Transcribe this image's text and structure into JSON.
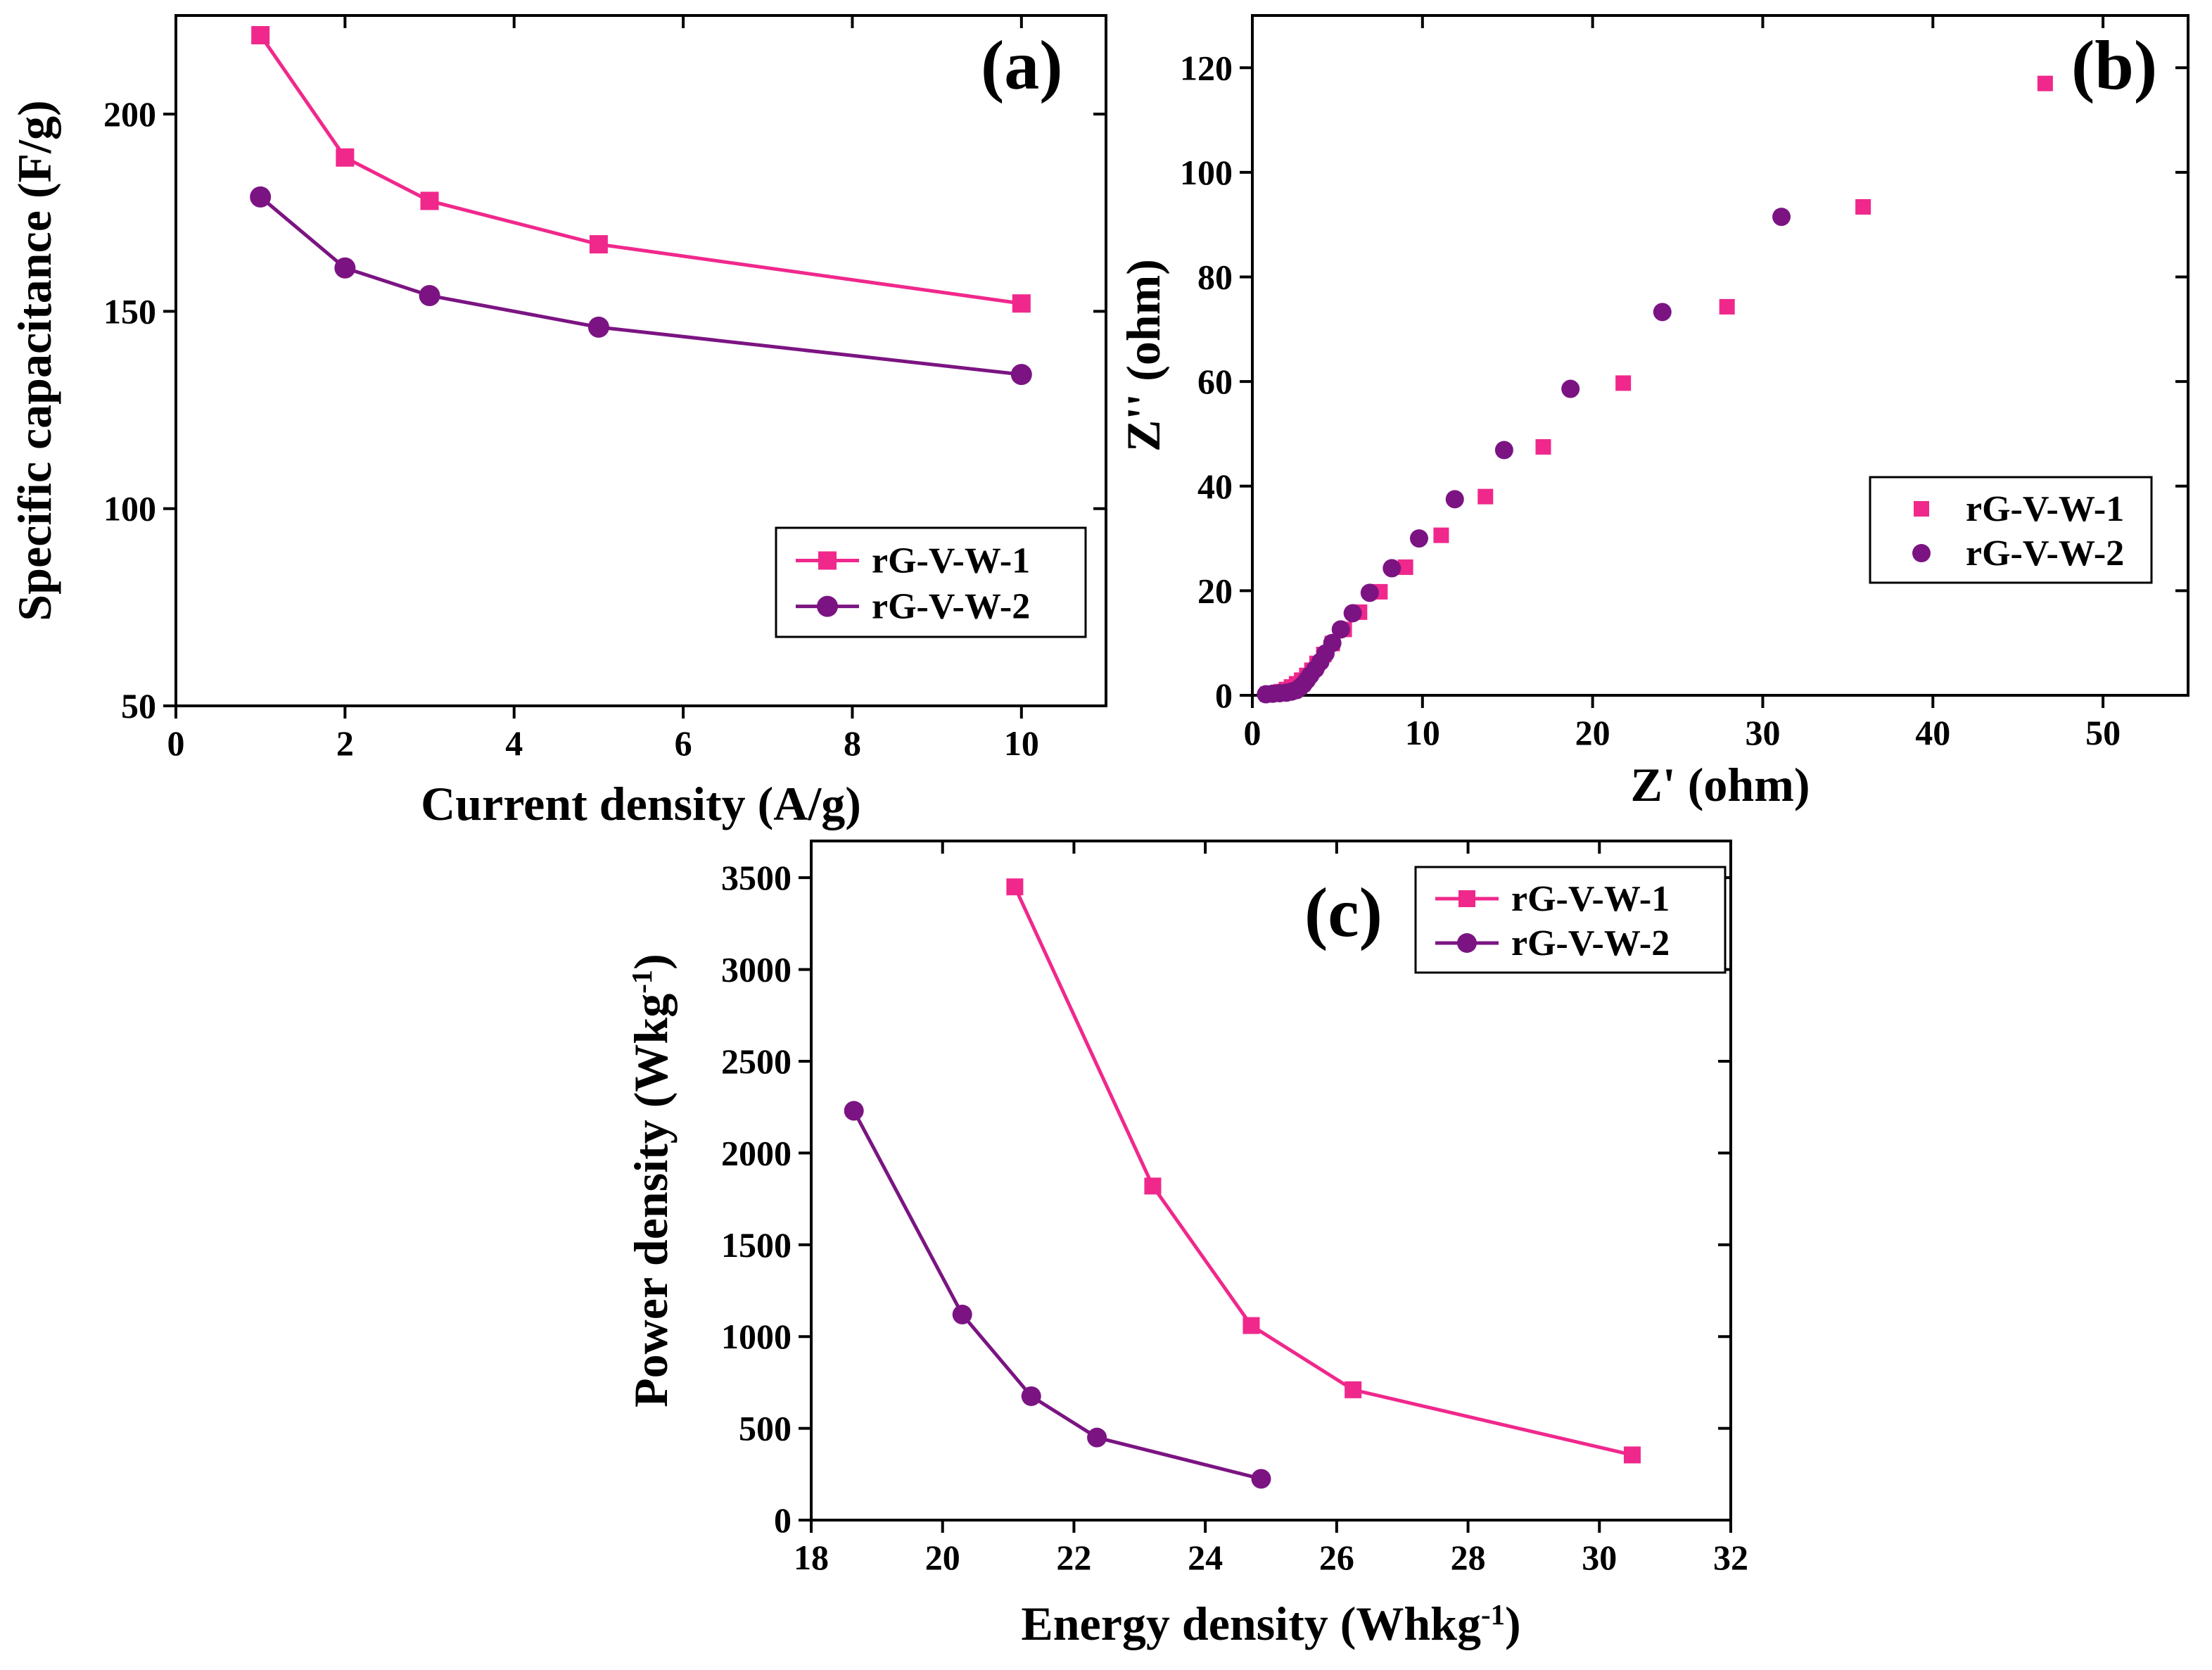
{
  "colors": {
    "series1": "#f0288c",
    "series2": "#7b1482"
  },
  "chart_data": [
    {
      "panel": "(a)",
      "type": "line",
      "xlabel": "Current density (A/g)",
      "ylabel": "Specific capacitance (F/g)",
      "xlim": [
        0,
        11
      ],
      "ylim": [
        50,
        225
      ],
      "xticks": [
        0,
        2,
        4,
        6,
        8,
        10
      ],
      "yticks": [
        50,
        100,
        150,
        200
      ],
      "legend": "bottom-right",
      "series": [
        {
          "name": "rG-V-W-1",
          "marker": "square",
          "x": [
            1,
            2,
            3,
            5,
            10
          ],
          "y": [
            220,
            189,
            178,
            167,
            152
          ]
        },
        {
          "name": "rG-V-W-2",
          "marker": "circle",
          "x": [
            1,
            2,
            3,
            5,
            10
          ],
          "y": [
            179,
            161,
            154,
            146,
            134
          ]
        }
      ]
    },
    {
      "panel": "(b)",
      "type": "scatter",
      "xlabel": "Z' (ohm)",
      "ylabel": "Z'' (ohm)",
      "xlim": [
        0,
        55
      ],
      "ylim": [
        0,
        130
      ],
      "xticks": [
        0,
        10,
        20,
        30,
        40,
        50
      ],
      "yticks": [
        0,
        20,
        40,
        60,
        80,
        100,
        120
      ],
      "legend": "middle-right",
      "series": [
        {
          "name": "rG-V-W-1",
          "marker": "square",
          "x": [
            0.9,
            1.3,
            1.7,
            2.0,
            2.3,
            2.6,
            2.9,
            3.2,
            3.5,
            3.8,
            4.2,
            4.7,
            5.4,
            6.3,
            7.5,
            9.0,
            11.1,
            13.7,
            17.1,
            21.8,
            27.9,
            35.9,
            46.6
          ],
          "y": [
            0.2,
            0.4,
            0.7,
            1.1,
            1.6,
            2.2,
            2.9,
            3.8,
            4.8,
            6.1,
            7.8,
            9.9,
            12.6,
            15.9,
            19.8,
            24.5,
            30.6,
            38.0,
            47.5,
            59.7,
            74.3,
            93.4,
            117.0
          ]
        },
        {
          "name": "rG-V-W-2",
          "marker": "circle",
          "x": [
            0.8,
            1.2,
            1.6,
            2.0,
            2.3,
            2.6,
            2.8,
            3.0,
            3.2,
            3.4,
            3.7,
            4.0,
            4.3,
            4.7,
            5.2,
            5.9,
            6.9,
            8.2,
            9.8,
            11.9,
            14.8,
            18.7,
            24.1,
            31.1
          ],
          "y": [
            0.2,
            0.3,
            0.4,
            0.5,
            0.7,
            1.0,
            1.5,
            2.1,
            2.9,
            3.8,
            5.0,
            6.4,
            8.0,
            10.0,
            12.6,
            15.7,
            19.6,
            24.3,
            30.0,
            37.5,
            46.9,
            58.6,
            73.3,
            91.5
          ]
        }
      ]
    },
    {
      "panel": "(c)",
      "type": "line",
      "xlabel": "Energy density (Whkg",
      "xlabel_sup": "-1",
      "xlabel_end": ")",
      "ylabel": "Power density (Wkg",
      "ylabel_sup": "-1",
      "ylabel_end": ")",
      "xlim": [
        18,
        32
      ],
      "ylim": [
        0,
        3700
      ],
      "xticks": [
        18,
        20,
        22,
        24,
        26,
        28,
        30,
        32
      ],
      "yticks": [
        0,
        500,
        1000,
        1500,
        2000,
        2500,
        3000,
        3500
      ],
      "legend": "top-right",
      "series": [
        {
          "name": "rG-V-W-1",
          "marker": "square",
          "x": [
            21.1,
            23.2,
            24.7,
            26.25,
            30.5
          ],
          "y": [
            3450,
            1820,
            1060,
            710,
            355
          ]
        },
        {
          "name": "rG-V-W-2",
          "marker": "circle",
          "x": [
            18.65,
            20.3,
            21.35,
            22.35,
            24.85
          ],
          "y": [
            2230,
            1120,
            675,
            450,
            225
          ]
        }
      ]
    }
  ]
}
